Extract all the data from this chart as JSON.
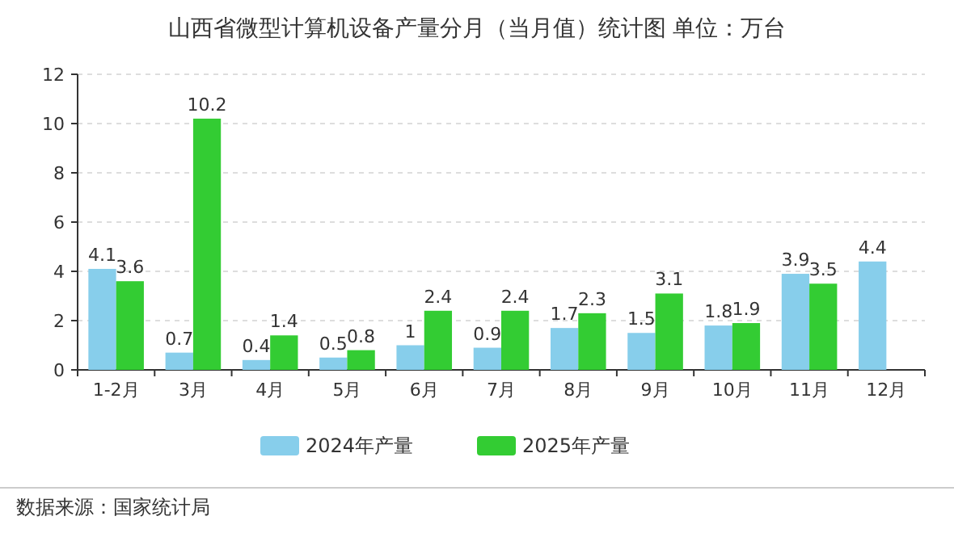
{
  "chart_data": {
    "type": "bar",
    "title": "山西省微型计算机设备产量分月（当月值）统计图 单位：万台",
    "categories": [
      "1-2月",
      "3月",
      "4月",
      "5月",
      "6月",
      "7月",
      "8月",
      "9月",
      "10月",
      "11月",
      "12月"
    ],
    "series": [
      {
        "name": "2024年产量",
        "color": "#87ceeb",
        "values": [
          4.1,
          0.7,
          0.4,
          0.5,
          1,
          0.9,
          1.7,
          1.5,
          1.8,
          3.9,
          4.4
        ]
      },
      {
        "name": "2025年产量",
        "color": "#33cc33",
        "values": [
          3.6,
          10.2,
          1.4,
          0.8,
          2.4,
          2.4,
          2.3,
          3.1,
          1.9,
          3.5,
          null
        ]
      }
    ],
    "ylim": [
      0,
      12
    ],
    "yticks": [
      0,
      2,
      4,
      6,
      8,
      10,
      12
    ],
    "grid": "y",
    "legend": "bottom",
    "data_labels": true,
    "annotations": [
      "数据来源：国家统计局"
    ]
  }
}
